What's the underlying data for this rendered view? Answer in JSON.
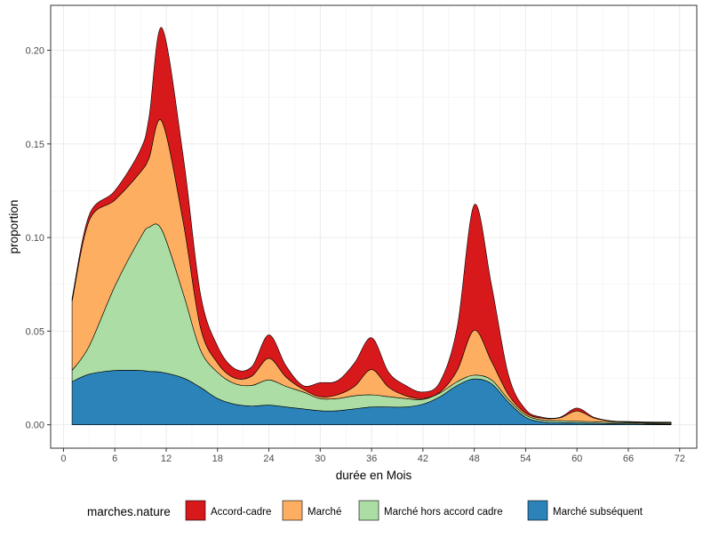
{
  "chart_data": {
    "type": "area",
    "stacked": true,
    "xlabel": "durée en Mois",
    "ylabel": "proportion",
    "xlim": [
      -1.5,
      74
    ],
    "ylim": [
      -0.0125,
      0.224
    ],
    "xticks": [
      0,
      6,
      12,
      18,
      24,
      30,
      36,
      42,
      48,
      54,
      60,
      66,
      72
    ],
    "yticks": [
      0,
      0.05,
      0.1,
      0.15,
      0.2
    ],
    "ytick_labels": [
      "0.00",
      "0.05",
      "0.10",
      "0.15",
      "0.20"
    ],
    "grid": true,
    "legend": {
      "title": "marches.nature",
      "position": "bottom"
    },
    "x": [
      1,
      3,
      6,
      9,
      10,
      11.5,
      14,
      16,
      18,
      20,
      22,
      24,
      26,
      28,
      30,
      32,
      34,
      36,
      38,
      40,
      42,
      44,
      46,
      48,
      50,
      52,
      54,
      56,
      58,
      60,
      62,
      64,
      66,
      68,
      71
    ],
    "series": [
      {
        "name": "Marché subséquent",
        "color": "#2b83ba",
        "values": [
          0.023,
          0.027,
          0.029,
          0.029,
          0.0285,
          0.028,
          0.025,
          0.02,
          0.014,
          0.011,
          0.01,
          0.0105,
          0.0095,
          0.0085,
          0.0075,
          0.0075,
          0.0085,
          0.0095,
          0.0095,
          0.0095,
          0.011,
          0.015,
          0.021,
          0.0245,
          0.022,
          0.012,
          0.004,
          0.0015,
          0.0012,
          0.001,
          0.0008,
          0.0006,
          0.0005,
          0.0004,
          0.0003
        ]
      },
      {
        "name": "Marché hors accord cadre",
        "color": "#abdda4",
        "values": [
          0.006,
          0.015,
          0.045,
          0.071,
          0.077,
          0.076,
          0.045,
          0.02,
          0.014,
          0.011,
          0.011,
          0.0135,
          0.011,
          0.009,
          0.0065,
          0.0065,
          0.007,
          0.0065,
          0.0055,
          0.0045,
          0.0025,
          0.002,
          0.002,
          0.002,
          0.002,
          0.0015,
          0.0012,
          0.001,
          0.001,
          0.0009,
          0.0008,
          0.0007,
          0.0006,
          0.0005,
          0.0005
        ]
      },
      {
        "name": "Marché",
        "color": "#fdae61",
        "values": [
          0.037,
          0.067,
          0.046,
          0.035,
          0.037,
          0.058,
          0.038,
          0.012,
          0.005,
          0.003,
          0.005,
          0.0115,
          0.005,
          0.0015,
          0.001,
          0.002,
          0.005,
          0.0135,
          0.005,
          0.0015,
          0.0005,
          0.0005,
          0.006,
          0.024,
          0.01,
          0.0025,
          0.001,
          0.001,
          0.0015,
          0.0055,
          0.002,
          0.0006,
          0.0004,
          0.0004,
          0.0004
        ]
      },
      {
        "name": "Accord-cadre",
        "color": "#d7191c",
        "values": [
          0.0015,
          0.003,
          0.005,
          0.012,
          0.022,
          0.05,
          0.035,
          0.018,
          0.009,
          0.005,
          0.005,
          0.0125,
          0.006,
          0.002,
          0.0075,
          0.0075,
          0.0125,
          0.017,
          0.008,
          0.0055,
          0.0035,
          0.0055,
          0.023,
          0.067,
          0.041,
          0.0105,
          0.002,
          0.0005,
          0.0003,
          0.0015,
          0.0004,
          0.0002,
          0.0002,
          0.0002,
          0.0002
        ]
      }
    ],
    "legend_order": [
      "Accord-cadre",
      "Marché",
      "Marché hors accord cadre",
      "Marché subséquent"
    ]
  }
}
